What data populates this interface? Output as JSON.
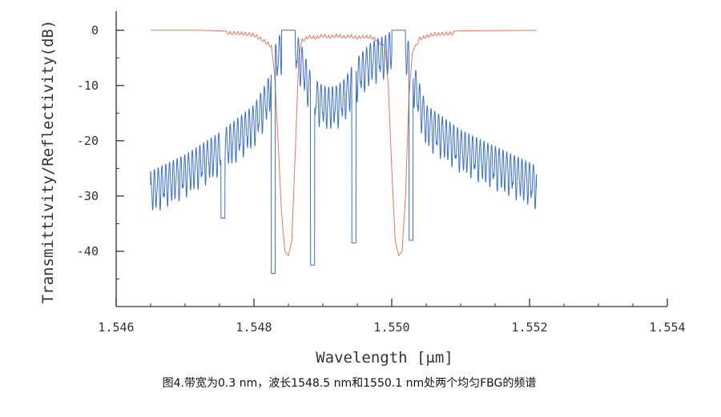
{
  "chart_data": {
    "type": "line",
    "xlabel": "Wavelength [μm]",
    "ylabel": "Transmittivity/Reflectivity(dB)",
    "xlim": [
      1.546,
      1.554
    ],
    "ylim": [
      -50,
      2
    ],
    "x_ticks": [
      "1.546",
      "1.548",
      "1.550",
      "1.552",
      "1.554"
    ],
    "x_tick_values": [
      1.546,
      1.548,
      1.55,
      1.552,
      1.554
    ],
    "y_ticks": [
      "0",
      "-10",
      "-20",
      "-30",
      "-40"
    ],
    "y_tick_values": [
      0,
      -10,
      -20,
      -30,
      -40
    ],
    "grid": false,
    "legend": "none",
    "series": [
      {
        "color": "#e8765a",
        "x": [
          1.5465,
          1.5472,
          1.5478,
          1.548,
          1.5481,
          1.54825,
          1.5483,
          1.54835,
          1.5484,
          1.54845,
          1.5485,
          1.54855,
          1.5486,
          1.54865,
          1.5487,
          1.5488,
          1.5489,
          1.549,
          1.5491,
          1.5492,
          1.5493,
          1.5494,
          1.5495,
          1.5496,
          1.5497,
          1.5498,
          1.5499,
          1.54995,
          1.55,
          1.55005,
          1.5501,
          1.55015,
          1.5502,
          1.55025,
          1.5503,
          1.5504,
          1.5506,
          1.551,
          1.5521
        ],
        "values": [
          0,
          0,
          -0.2,
          -0.5,
          -1.2,
          -2.5,
          -8,
          -20,
          -33,
          -40,
          -40.8,
          -38,
          -22,
          -5,
          -1.5,
          -0.8,
          -1.0,
          -0.6,
          -0.9,
          -0.6,
          -0.9,
          -0.7,
          -1.0,
          -0.8,
          -0.9,
          -1.5,
          -3,
          -10,
          -25,
          -38,
          -40.8,
          -40,
          -30,
          -12,
          -4,
          -1.2,
          -0.4,
          -0.1,
          0
        ]
      },
      {
        "color": "#3a6fd8",
        "x": [
          1.5465,
          1.547,
          1.5475,
          1.548,
          1.5482,
          1.5483,
          1.5484,
          1.5486,
          1.5487,
          1.5488,
          1.5489,
          1.549,
          1.5491,
          1.5492,
          1.5493,
          1.5494,
          1.5495,
          1.5496,
          1.5497,
          1.5498,
          1.5499,
          1.55,
          1.5502,
          1.5503,
          1.5504,
          1.5505,
          1.551,
          1.5515,
          1.5521
        ],
        "values": [
          -25.5,
          -22.5,
          -18.5,
          -13.5,
          -9,
          -3,
          0,
          0,
          -3,
          -7,
          -9,
          -10,
          -10.3,
          -10,
          -9,
          -7,
          -5,
          -3.5,
          -2.2,
          -1.5,
          -1.0,
          0,
          0,
          -5,
          -9.5,
          -13.5,
          -18,
          -21,
          -24.5
        ]
      }
    ]
  },
  "caption": "图4.带宽为0.3 nm，波长1548.5 nm和1550.1 nm处两个均匀FBG的频谱"
}
